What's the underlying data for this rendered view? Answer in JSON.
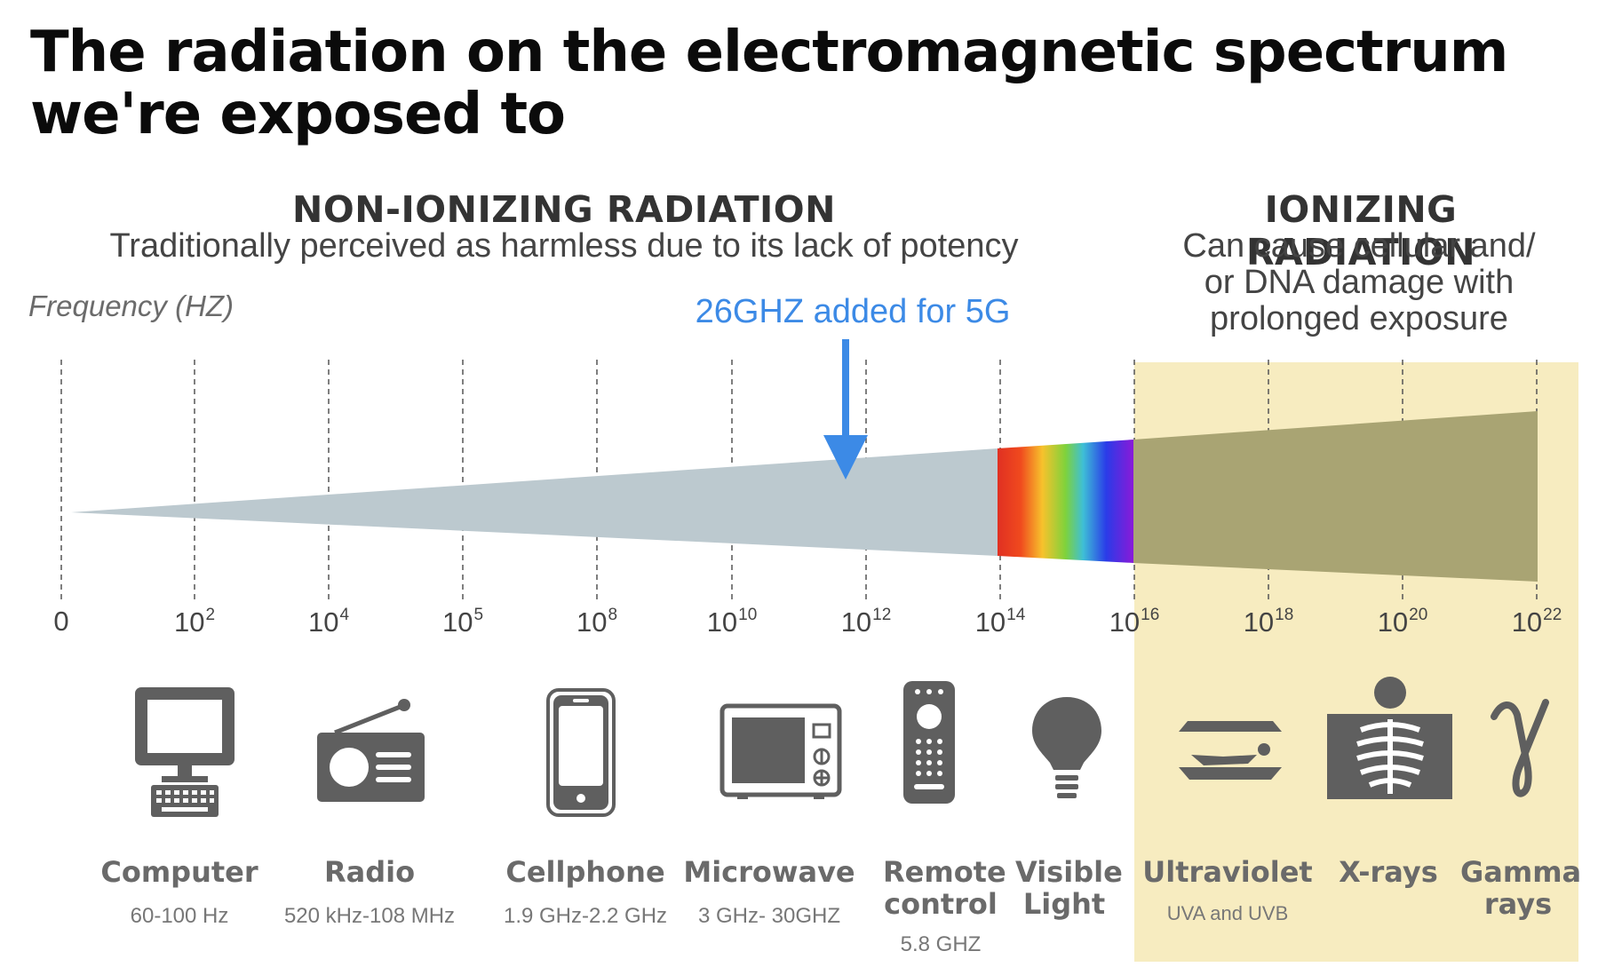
{
  "title": {
    "line1": "The radiation on the electromagnetic spectrum",
    "line2": "we're exposed to"
  },
  "non_ionizing": {
    "heading": "NON-IONIZING RADIATION",
    "description": "Traditionally perceived as harmless due to its lack of potency"
  },
  "ionizing": {
    "heading": "IONIZING RADIATION",
    "description_lines": [
      "Can cause cellular and/",
      "or DNA damage with",
      "prolonged exposure"
    ]
  },
  "axis": {
    "label": "Frequency (HZ)",
    "ticks": [
      {
        "base": "0",
        "exp": ""
      },
      {
        "base": "10",
        "exp": "2"
      },
      {
        "base": "10",
        "exp": "4"
      },
      {
        "base": "10",
        "exp": "5"
      },
      {
        "base": "10",
        "exp": "8"
      },
      {
        "base": "10",
        "exp": "10"
      },
      {
        "base": "10",
        "exp": "12"
      },
      {
        "base": "10",
        "exp": "14"
      },
      {
        "base": "10",
        "exp": "16"
      },
      {
        "base": "10",
        "exp": "18"
      },
      {
        "base": "10",
        "exp": "20"
      },
      {
        "base": "10",
        "exp": "22"
      }
    ]
  },
  "callout": {
    "text": "26GHZ added for 5G",
    "color": "#3c8ae6"
  },
  "colors": {
    "non_ionizing_band": "#bcc9cf",
    "ionizing_band": "#a9a473",
    "ionizing_background": "#f7ecc0",
    "icon_gray": "#5f5f5f"
  },
  "items": [
    {
      "name": "Computer",
      "range": "60-100 Hz",
      "icon": "computer-icon"
    },
    {
      "name": "Radio",
      "range": "520 kHz-108 MHz",
      "icon": "radio-icon"
    },
    {
      "name": "Cellphone",
      "range": "1.9 GHz-2.2 GHz",
      "icon": "cellphone-icon"
    },
    {
      "name": "Microwave",
      "range": "3 GHz- 30GHZ",
      "icon": "microwave-icon"
    },
    {
      "name": "Remote control",
      "range": "5.8 GHZ",
      "icon": "remote-control-icon"
    },
    {
      "name": "Visible Light",
      "range": "",
      "icon": "lightbulb-icon"
    },
    {
      "name": "Ultraviolet",
      "range": "UVA and UVB",
      "icon": "tanning-bed-icon"
    },
    {
      "name": "X-rays",
      "range": "",
      "icon": "xray-icon"
    },
    {
      "name": "Gamma rays",
      "range": "",
      "icon": "gamma-icon"
    }
  ]
}
